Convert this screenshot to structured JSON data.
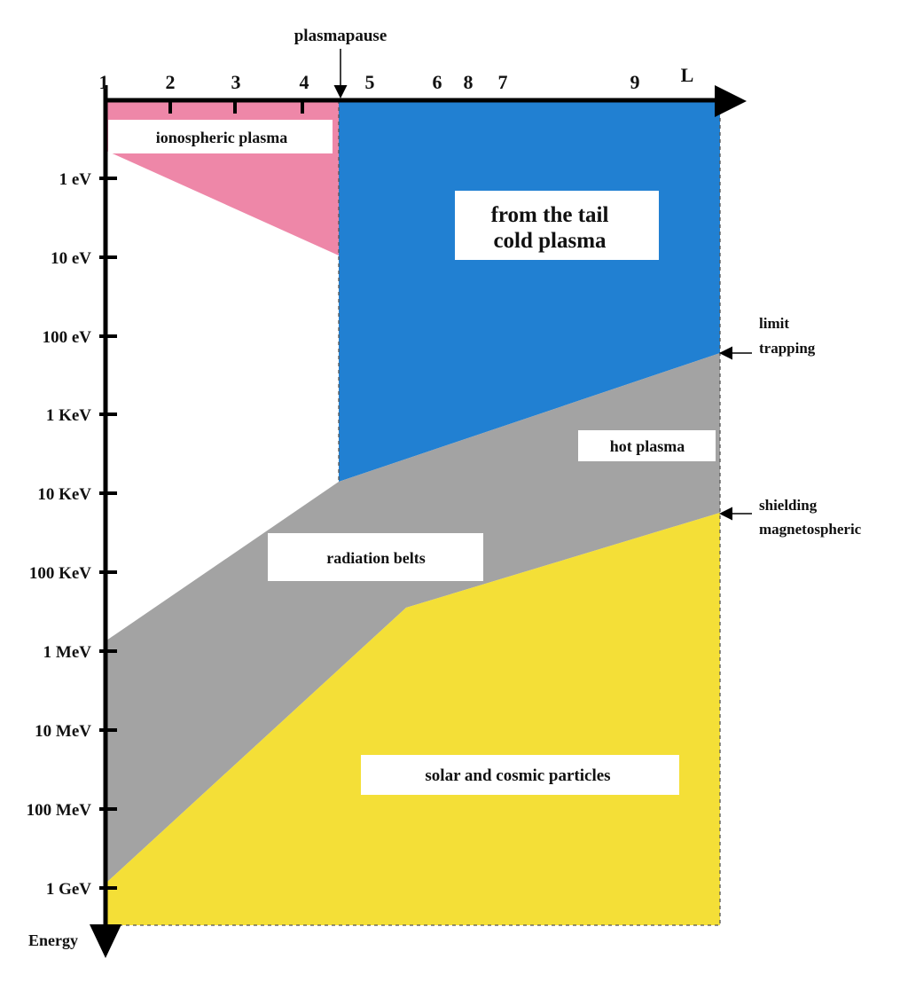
{
  "diagram": {
    "colors": {
      "ionospheric": "#ee87a8",
      "cold": "#2180d2",
      "hot": "#a3a3a3",
      "solar": "#f4df37"
    },
    "top_label": "plasmapause",
    "x_axis": {
      "labels": [
        "1",
        "2",
        "3",
        "4",
        "5",
        "6",
        "8",
        "7",
        "9",
        "L"
      ]
    },
    "y_axis": {
      "title": "Energy",
      "labels": [
        "1 eV",
        "10 eV",
        "100 eV",
        "1 KeV",
        "10 KeV",
        "100 KeV",
        "1 MeV",
        "10 MeV",
        "100 MeV",
        "1 GeV"
      ]
    },
    "regions": {
      "ionospheric": "ionospheric plasma",
      "cold_line1": "from the tail",
      "cold_line2": "cold plasma",
      "hot": "hot plasma",
      "radiation": "radiation belts",
      "solar": "solar and cosmic particles"
    },
    "annotations": {
      "trapping_1": "limit",
      "trapping_2": "trapping",
      "shielding_1": "shielding",
      "shielding_2": "magnetospheric"
    }
  }
}
